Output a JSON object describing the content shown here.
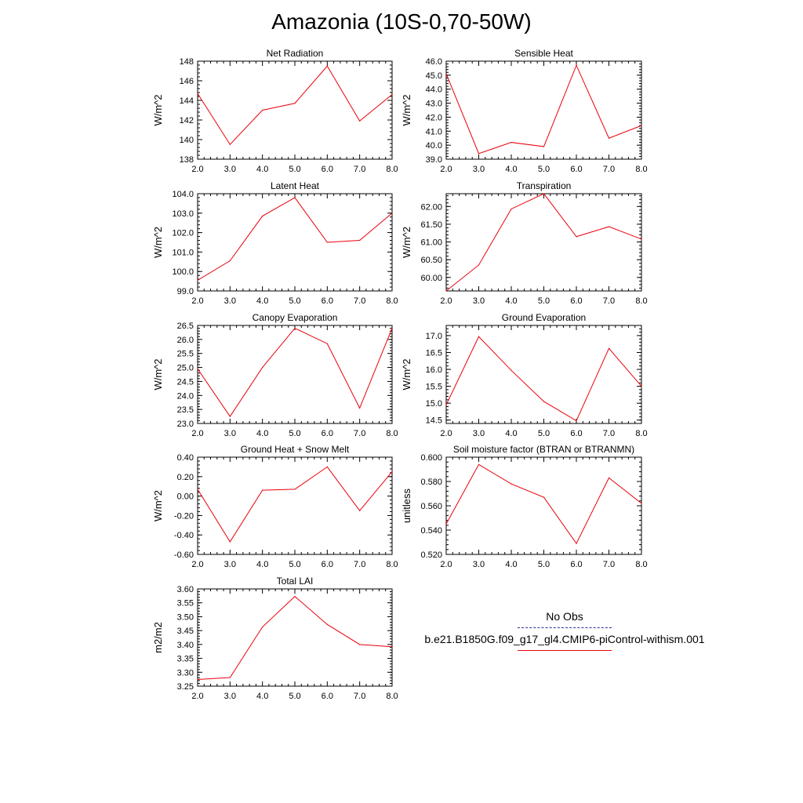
{
  "page_title": "Amazonia (10S-0,70-50W)",
  "colors": {
    "series": "#e8000b",
    "obs": "#2c2c9c",
    "axis": "#000000"
  },
  "legend": {
    "obs_label": "No Obs",
    "model_label": "b.e21.B1850G.f09_g17_gl4.CMIP6-piControl-withism.001"
  },
  "chart_data": [
    {
      "type": "line",
      "title": "Net Radiation",
      "ylabel": "W/m^2",
      "x": [
        2,
        3,
        4,
        5,
        6,
        7,
        8
      ],
      "xlim": [
        2,
        8
      ],
      "xticks": [
        "2.0",
        "3.0",
        "4.0",
        "5.0",
        "6.0",
        "7.0",
        "8.0"
      ],
      "ylim": [
        138,
        148
      ],
      "yticks": [
        "138",
        "140",
        "142",
        "144",
        "146",
        "148"
      ],
      "series": [
        {
          "values": [
            144.7,
            139.5,
            143.0,
            143.7,
            147.5,
            141.9,
            144.6
          ]
        }
      ]
    },
    {
      "type": "line",
      "title": "Sensible Heat",
      "ylabel": "W/m^2",
      "x": [
        2,
        3,
        4,
        5,
        6,
        7,
        8
      ],
      "xlim": [
        2,
        8
      ],
      "xticks": [
        "2.0",
        "3.0",
        "4.0",
        "5.0",
        "6.0",
        "7.0",
        "8.0"
      ],
      "ylim": [
        39,
        46
      ],
      "yticks": [
        "39.0",
        "40.0",
        "41.0",
        "42.0",
        "43.0",
        "44.0",
        "45.0",
        "46.0"
      ],
      "series": [
        {
          "values": [
            45.1,
            39.4,
            40.2,
            39.9,
            45.7,
            40.5,
            41.4
          ]
        }
      ]
    },
    {
      "type": "line",
      "title": "Latent Heat",
      "ylabel": "W/m^2",
      "x": [
        2,
        3,
        4,
        5,
        6,
        7,
        8
      ],
      "xlim": [
        2,
        8
      ],
      "xticks": [
        "2.0",
        "3.0",
        "4.0",
        "5.0",
        "6.0",
        "7.0",
        "8.0"
      ],
      "ylim": [
        99,
        104
      ],
      "yticks": [
        "99.0",
        "100.0",
        "101.0",
        "102.0",
        "103.0",
        "104.0"
      ],
      "series": [
        {
          "values": [
            99.55,
            100.55,
            102.85,
            103.8,
            101.5,
            101.6,
            103.0
          ]
        }
      ]
    },
    {
      "type": "line",
      "title": "Transpiration",
      "ylabel": "W/m^2",
      "x": [
        2,
        3,
        4,
        5,
        6,
        7,
        8
      ],
      "xlim": [
        2,
        8
      ],
      "xticks": [
        "2.0",
        "3.0",
        "4.0",
        "5.0",
        "6.0",
        "7.0",
        "8.0"
      ],
      "ylim": [
        59.62,
        62.36
      ],
      "yticks": [
        "60.00",
        "60.50",
        "61.00",
        "61.50",
        "62.00"
      ],
      "ytick_values": [
        60.0,
        60.5,
        61.0,
        61.5,
        62.0
      ],
      "series": [
        {
          "values": [
            59.62,
            60.35,
            61.93,
            62.36,
            61.15,
            61.43,
            61.08
          ]
        }
      ]
    },
    {
      "type": "line",
      "title": "Canopy Evaporation",
      "ylabel": "W/m^2",
      "x": [
        2,
        3,
        4,
        5,
        6,
        7,
        8
      ],
      "xlim": [
        2,
        8
      ],
      "xticks": [
        "2.0",
        "3.0",
        "4.0",
        "5.0",
        "6.0",
        "7.0",
        "8.0"
      ],
      "ylim": [
        23,
        26.5
      ],
      "yticks": [
        "23.0",
        "23.5",
        "24.0",
        "24.5",
        "25.0",
        "25.5",
        "26.0",
        "26.5"
      ],
      "series": [
        {
          "values": [
            24.95,
            23.25,
            25.0,
            26.4,
            25.85,
            23.55,
            26.4
          ]
        }
      ]
    },
    {
      "type": "line",
      "title": "Ground Evaporation",
      "ylabel": "W/m^2",
      "x": [
        2,
        3,
        4,
        5,
        6,
        7,
        8
      ],
      "xlim": [
        2,
        8
      ],
      "xticks": [
        "2.0",
        "3.0",
        "4.0",
        "5.0",
        "6.0",
        "7.0",
        "8.0"
      ],
      "ylim": [
        14.4,
        17.3
      ],
      "yticks": [
        "14.5",
        "15.0",
        "15.5",
        "16.0",
        "16.5",
        "17.0"
      ],
      "ytick_values": [
        14.5,
        15.0,
        15.5,
        16.0,
        16.5,
        17.0
      ],
      "series": [
        {
          "values": [
            14.95,
            16.97,
            15.97,
            15.05,
            14.48,
            16.62,
            15.5
          ]
        }
      ]
    },
    {
      "type": "line",
      "title": "Ground Heat + Snow Melt",
      "ylabel": "W/m^2",
      "x": [
        2,
        3,
        4,
        5,
        6,
        7,
        8
      ],
      "xlim": [
        2,
        8
      ],
      "xticks": [
        "2.0",
        "3.0",
        "4.0",
        "5.0",
        "6.0",
        "7.0",
        "8.0"
      ],
      "ylim": [
        -0.6,
        0.4
      ],
      "yticks": [
        "-0.60",
        "-0.40",
        "-0.20",
        "0.00",
        "0.20",
        "0.40"
      ],
      "series": [
        {
          "values": [
            0.07,
            -0.47,
            0.06,
            0.07,
            0.3,
            -0.15,
            0.25
          ]
        }
      ]
    },
    {
      "type": "line",
      "title": "Soil moisture factor (BTRAN or BTRANMN)",
      "ylabel": "unitless",
      "x": [
        2,
        3,
        4,
        5,
        6,
        7,
        8
      ],
      "xlim": [
        2,
        8
      ],
      "xticks": [
        "2.0",
        "3.0",
        "4.0",
        "5.0",
        "6.0",
        "7.0",
        "8.0"
      ],
      "ylim": [
        0.52,
        0.6
      ],
      "yticks": [
        "0.520",
        "0.540",
        "0.560",
        "0.580",
        "0.600"
      ],
      "series": [
        {
          "values": [
            0.545,
            0.594,
            0.578,
            0.567,
            0.529,
            0.583,
            0.562
          ]
        }
      ]
    },
    {
      "type": "line",
      "title": "Total LAI",
      "ylabel": "m2/m2",
      "x": [
        2,
        3,
        4,
        5,
        6,
        7,
        8
      ],
      "xlim": [
        2,
        8
      ],
      "xticks": [
        "2.0",
        "3.0",
        "4.0",
        "5.0",
        "6.0",
        "7.0",
        "8.0"
      ],
      "ylim": [
        3.25,
        3.6
      ],
      "yticks": [
        "3.25",
        "3.30",
        "3.35",
        "3.40",
        "3.45",
        "3.50",
        "3.55",
        "3.60"
      ],
      "series": [
        {
          "values": [
            3.274,
            3.281,
            3.463,
            3.573,
            3.472,
            3.4,
            3.392
          ]
        }
      ]
    }
  ]
}
